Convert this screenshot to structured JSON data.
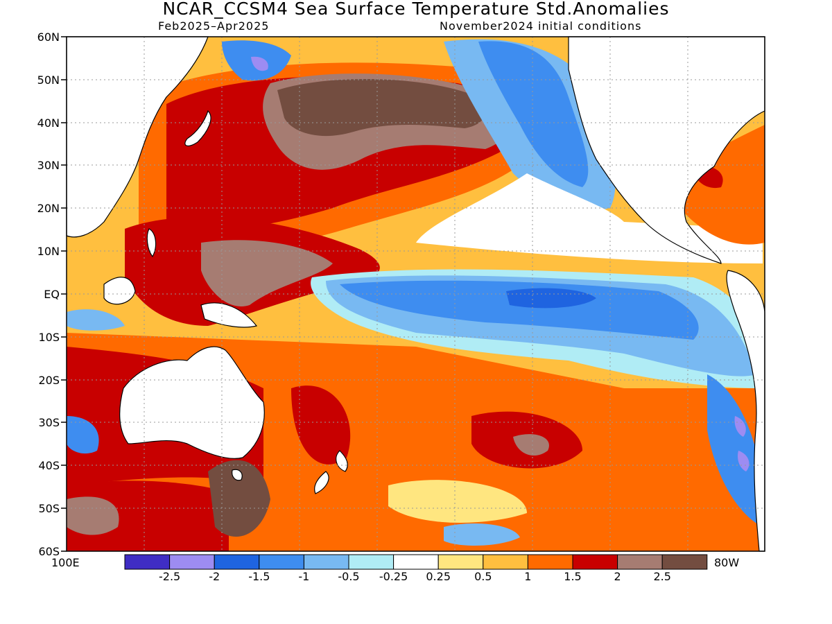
{
  "header": {
    "title": "NCAR_CCSM4 Sea Surface Temperature Std.Anomalies",
    "period": "Feb2025–Apr2025",
    "init": "November2024 initial conditions"
  },
  "axes": {
    "lat_labels": [
      "60N",
      "50N",
      "40N",
      "30N",
      "20N",
      "10N",
      "EQ",
      "10S",
      "20S",
      "30S",
      "40S",
      "50S",
      "60S"
    ],
    "lon_left": "100E",
    "lon_right": "80W"
  },
  "colorbar": {
    "labels": [
      "-2.5",
      "-2",
      "-1.5",
      "-1",
      "-0.5",
      "-0.25",
      "0.25",
      "0.5",
      "1",
      "1.5",
      "2",
      "2.5"
    ],
    "colors": [
      "#3f2dc4",
      "#9d8cf2",
      "#1f64e0",
      "#3e8df0",
      "#78b9f2",
      "#b0ecf5",
      "#ffffff",
      "#ffe680",
      "#ffbf3f",
      "#ff6a00",
      "#c80000",
      "#a67c72",
      "#734d40"
    ]
  },
  "map": {
    "land_color": "#ffffff",
    "coast_color": "#000000",
    "grid": "dotted",
    "dominant_feature": "negative anomalies (blue) along the equatorial central/eastern Pacific; strong positive anomalies (red/brown) across the western and northern Pacific"
  }
}
